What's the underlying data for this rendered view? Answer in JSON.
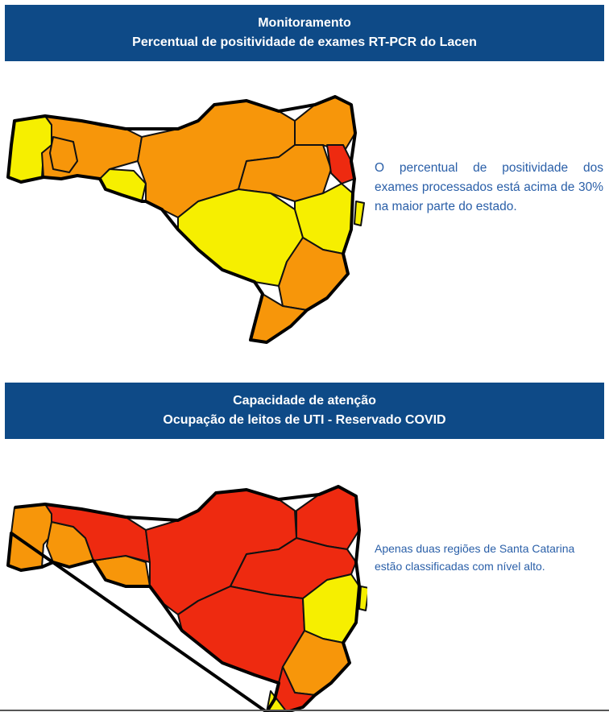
{
  "section1": {
    "banner_line1": "Monitoramento",
    "banner_line2": "Percentual de positividade de exames RT-PCR do Lacen",
    "description": "O percentual de positividade dos exames processados está acima de 30% na maior parte do estado."
  },
  "section2": {
    "banner_line1": "Capacidade de atenção",
    "banner_line2": "Ocupação de leitos de UTI - Reservado COVID",
    "description": "Apenas duas regiões de Santa Catarina estão classificadas com nível alto."
  },
  "colors": {
    "banner": "#0e4a87",
    "yellow": "#f6ef00",
    "orange": "#f7960a",
    "red": "#ee2a10",
    "text": "#2a5fa8"
  }
}
